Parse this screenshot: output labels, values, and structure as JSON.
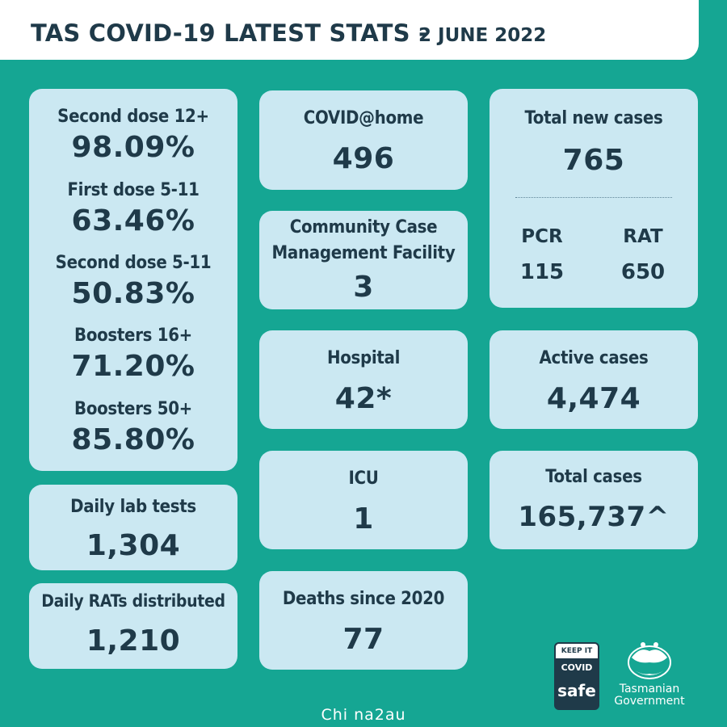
{
  "header": {
    "title": "TAS COVID-19 LATEST STATS -",
    "date": "2 JUNE 2022"
  },
  "vaccination": [
    {
      "label": "Second dose  12+",
      "value": "98.09%"
    },
    {
      "label": "First dose 5-11",
      "value": "63.46%"
    },
    {
      "label": "Second dose 5-11",
      "value": "50.83%"
    },
    {
      "label": "Boosters 16+",
      "value": "71.20%"
    },
    {
      "label": "Boosters 50+",
      "value": "85.80%"
    }
  ],
  "daily_lab_tests": {
    "label": "Daily lab tests",
    "value": "1,304"
  },
  "daily_rats": {
    "label": "Daily RATs distributed",
    "value": "1,210"
  },
  "covid_at_home": {
    "label": "COVID@home",
    "value": "496"
  },
  "ccmf": {
    "label_line1": "Community Case",
    "label_line2": "Management Facility",
    "value": "3"
  },
  "hospital": {
    "label": "Hospital",
    "value": "42*"
  },
  "icu": {
    "label": "ICU",
    "value": "1"
  },
  "deaths": {
    "label": "Deaths since 2020",
    "value": "77"
  },
  "total_new_cases": {
    "label": "Total new cases",
    "value": "765",
    "pcr_label": "PCR",
    "pcr_value": "115",
    "rat_label": "RAT",
    "rat_value": "650"
  },
  "active_cases": {
    "label": "Active cases",
    "value": "4,474"
  },
  "total_cases": {
    "label": "Total cases",
    "value": "165,737^"
  },
  "logos": {
    "covidsafe_top": "KEEP IT",
    "covidsafe_mid": "COVID",
    "covidsafe_bot": "safe",
    "tasgov_line1": "Tasmanian",
    "tasgov_line2": "Government"
  },
  "watermark": "Chi na2au",
  "colors": {
    "background": "#15a693",
    "card": "#cbe8f2",
    "text": "#1f3a49",
    "header": "#ffffff"
  }
}
